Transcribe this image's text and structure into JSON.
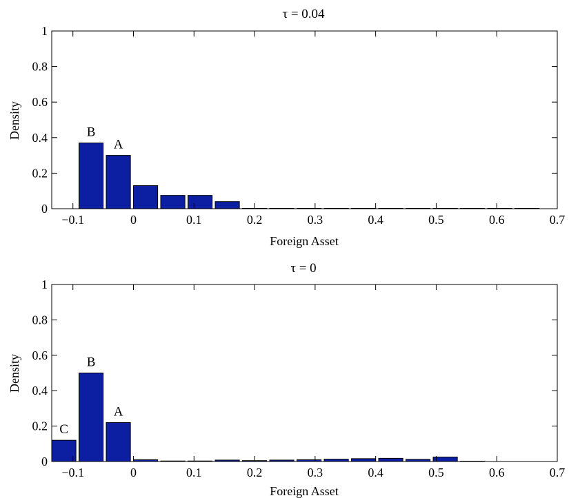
{
  "colors": {
    "bar": "#0c1ea1"
  },
  "chart_data": [
    {
      "type": "bar",
      "title": "τ = 0.04",
      "xlabel": "Foreign Asset",
      "ylabel": "Density",
      "xlim": [
        -0.135,
        0.7
      ],
      "ylim": [
        0,
        1
      ],
      "xticks": [
        "−0.1",
        "0",
        "0.1",
        "0.2",
        "0.3",
        "0.4",
        "0.5",
        "0.6",
        "0.7"
      ],
      "yticks": [
        "0",
        "0.2",
        "0.4",
        "0.6",
        "0.8",
        "1"
      ],
      "bar_width": 0.04,
      "x": [
        -0.07,
        -0.025,
        0.02,
        0.065,
        0.11,
        0.155,
        0.2,
        0.245,
        0.29,
        0.335,
        0.38,
        0.425,
        0.47,
        0.515,
        0.56,
        0.605,
        0.65
      ],
      "values": [
        0.37,
        0.3,
        0.13,
        0.075,
        0.075,
        0.04,
        0.002,
        0.002,
        0.002,
        0.002,
        0.002,
        0.002,
        0.002,
        0.002,
        0.002,
        0.002,
        0.002
      ],
      "annotations": [
        {
          "text": "B",
          "x": -0.07,
          "y": 0.37
        },
        {
          "text": "A",
          "x": -0.025,
          "y": 0.3
        }
      ]
    },
    {
      "type": "bar",
      "title": "τ = 0",
      "xlabel": "Foreign Asset",
      "ylabel": "Density",
      "xlim": [
        -0.135,
        0.7
      ],
      "ylim": [
        0,
        1
      ],
      "xticks": [
        "−0.1",
        "0",
        "0.1",
        "0.2",
        "0.3",
        "0.4",
        "0.5",
        "0.6",
        "0.7"
      ],
      "yticks": [
        "0",
        "0.2",
        "0.4",
        "0.6",
        "0.8",
        "1"
      ],
      "bar_width": 0.04,
      "x": [
        -0.115,
        -0.07,
        -0.025,
        0.02,
        0.065,
        0.11,
        0.155,
        0.2,
        0.245,
        0.29,
        0.335,
        0.38,
        0.425,
        0.47,
        0.515,
        0.56,
        0.605
      ],
      "values": [
        0.12,
        0.5,
        0.22,
        0.01,
        0.003,
        0.003,
        0.008,
        0.005,
        0.008,
        0.01,
        0.013,
        0.016,
        0.018,
        0.012,
        0.025,
        0.002,
        0.0
      ],
      "annotations": [
        {
          "text": "C",
          "x": -0.115,
          "y": 0.12
        },
        {
          "text": "B",
          "x": -0.07,
          "y": 0.5
        },
        {
          "text": "A",
          "x": -0.025,
          "y": 0.22
        }
      ]
    }
  ]
}
